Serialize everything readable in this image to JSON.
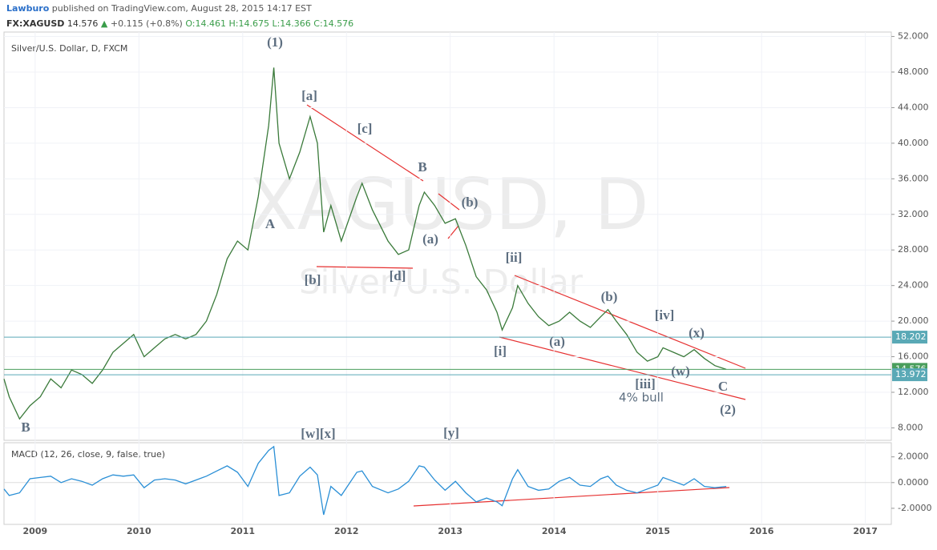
{
  "header": {
    "author": "Lawburo",
    "published": "published on TradingView.com, August 28, 2015 14:17 EST",
    "symbol": "FX:XAGUSD",
    "last": "14.576",
    "change": "+0.115 (+0.8%)",
    "ohlc": [
      "O:14.461",
      "H:14.675",
      "L:14.366",
      "C:14.576"
    ]
  },
  "chart_data": [
    {
      "type": "line",
      "title": "Silver/U.S. Dollar, D, FXCM",
      "watermark": [
        "XAGUSD, D",
        "Silver/U.S. Dollar"
      ],
      "color": "#3a7a3a",
      "grid": true,
      "x": [
        2008.7,
        2008.75,
        2008.85,
        2008.95,
        2009.05,
        2009.15,
        2009.25,
        2009.35,
        2009.45,
        2009.55,
        2009.65,
        2009.75,
        2009.85,
        2009.95,
        2010.05,
        2010.15,
        2010.25,
        2010.35,
        2010.45,
        2010.55,
        2010.65,
        2010.75,
        2010.85,
        2010.95,
        2011.05,
        2011.15,
        2011.25,
        2011.3,
        2011.35,
        2011.45,
        2011.55,
        2011.65,
        2011.72,
        2011.78,
        2011.85,
        2011.95,
        2012.1,
        2012.15,
        2012.25,
        2012.4,
        2012.5,
        2012.6,
        2012.7,
        2012.75,
        2012.85,
        2012.95,
        2013.05,
        2013.15,
        2013.25,
        2013.35,
        2013.45,
        2013.5,
        2013.6,
        2013.65,
        2013.75,
        2013.85,
        2013.95,
        2014.05,
        2014.15,
        2014.25,
        2014.35,
        2014.45,
        2014.52,
        2014.6,
        2014.7,
        2014.8,
        2014.9,
        2015.0,
        2015.05,
        2015.15,
        2015.25,
        2015.35,
        2015.45,
        2015.55,
        2015.66
      ],
      "values": [
        13.5,
        11.5,
        9.0,
        10.5,
        11.5,
        13.5,
        12.5,
        14.5,
        14.0,
        13.0,
        14.5,
        16.5,
        17.5,
        18.5,
        16.0,
        17.0,
        18.0,
        18.5,
        18.0,
        18.5,
        20.0,
        23.0,
        27.0,
        29.0,
        28.0,
        34.0,
        42.0,
        48.5,
        40.0,
        36.0,
        39.0,
        43.0,
        40.0,
        30.0,
        33.0,
        29.0,
        34.0,
        35.5,
        32.5,
        29.0,
        27.5,
        28.0,
        33.0,
        34.5,
        33.0,
        31.0,
        31.5,
        28.5,
        25.0,
        23.5,
        21.0,
        19.0,
        21.5,
        24.0,
        22.0,
        20.5,
        19.5,
        20.0,
        21.0,
        20.0,
        19.3,
        20.5,
        21.3,
        20.0,
        18.5,
        16.5,
        15.5,
        16.0,
        17.0,
        16.5,
        16.0,
        16.8,
        15.8,
        15.0,
        14.576
      ],
      "xlim": [
        2008.7,
        2017.25
      ],
      "xticks": [
        2009,
        2010,
        2011,
        2012,
        2013,
        2014,
        2015,
        2016,
        2017
      ],
      "ylim": [
        6.6,
        52.5
      ],
      "yticks": [
        {
          "value": 8,
          "label": "8.000"
        },
        {
          "value": 12,
          "label": "12.000"
        },
        {
          "value": 16,
          "label": "16.000"
        },
        {
          "value": 20,
          "label": "20.000"
        },
        {
          "value": 24,
          "label": "24.000"
        },
        {
          "value": 28,
          "label": "28.000"
        },
        {
          "value": 32,
          "label": "32.000"
        },
        {
          "value": 36,
          "label": "36.000"
        },
        {
          "value": 40,
          "label": "40.000"
        },
        {
          "value": 44,
          "label": "44.000"
        },
        {
          "value": 48,
          "label": "48.000"
        },
        {
          "value": 52,
          "label": "52.000"
        }
      ],
      "price_lines": [
        {
          "value": 18.202,
          "color": "#5aa9b6"
        },
        {
          "value": 14.576,
          "color": "#4a9e5c"
        },
        {
          "value": 13.972,
          "color": "#5aa9b6"
        }
      ],
      "annotations": [
        "(1)",
        "[a]",
        "[c]",
        "B",
        "(b)",
        "A",
        "(a)",
        "[ii]",
        "[b]",
        "[d]",
        "(b)",
        "[iv]",
        "(x)",
        "[i]",
        "(a)",
        "(w)",
        "[iii]",
        "C",
        "4% bull",
        "(2)",
        "B",
        "[w][x]",
        "[y]"
      ]
    },
    {
      "type": "line",
      "title": "MACD (12, 26, close, 9, false, true)",
      "color": "#2a8fd6",
      "x": [
        2008.7,
        2008.75,
        2008.85,
        2008.95,
        2009.05,
        2009.15,
        2009.25,
        2009.35,
        2009.45,
        2009.55,
        2009.65,
        2009.75,
        2009.85,
        2009.95,
        2010.05,
        2010.15,
        2010.25,
        2010.35,
        2010.45,
        2010.55,
        2010.65,
        2010.75,
        2010.85,
        2010.95,
        2011.05,
        2011.15,
        2011.25,
        2011.3,
        2011.35,
        2011.45,
        2011.55,
        2011.65,
        2011.72,
        2011.78,
        2011.85,
        2011.95,
        2012.1,
        2012.15,
        2012.25,
        2012.4,
        2012.5,
        2012.6,
        2012.7,
        2012.75,
        2012.85,
        2012.95,
        2013.05,
        2013.15,
        2013.25,
        2013.35,
        2013.45,
        2013.5,
        2013.6,
        2013.65,
        2013.75,
        2013.85,
        2013.95,
        2014.05,
        2014.15,
        2014.25,
        2014.35,
        2014.45,
        2014.52,
        2014.6,
        2014.7,
        2014.8,
        2014.9,
        2015.0,
        2015.05,
        2015.15,
        2015.25,
        2015.35,
        2015.45,
        2015.55,
        2015.66
      ],
      "values": [
        -0.5,
        -1,
        -0.8,
        0.3,
        0.4,
        0.5,
        0,
        0.3,
        0.1,
        -0.2,
        0.3,
        0.6,
        0.5,
        0.6,
        -0.4,
        0.2,
        0.3,
        0.2,
        -0.1,
        0.2,
        0.5,
        0.9,
        1.3,
        0.8,
        -0.3,
        1.5,
        2.5,
        2.8,
        -1.0,
        -0.8,
        0.5,
        1.2,
        0.6,
        -2.5,
        -0.3,
        -1.0,
        0.8,
        0.9,
        -0.3,
        -0.8,
        -0.5,
        0.1,
        1.3,
        1.2,
        0.2,
        -0.6,
        0.1,
        -0.8,
        -1.5,
        -1.2,
        -1.5,
        -1.8,
        0.3,
        1.0,
        -0.3,
        -0.6,
        -0.5,
        0.1,
        0.4,
        -0.2,
        -0.3,
        0.3,
        0.5,
        -0.2,
        -0.6,
        -0.8,
        -0.5,
        -0.2,
        0.4,
        0.1,
        -0.2,
        0.3,
        -0.3,
        -0.4,
        -0.3
      ],
      "xlim": [
        2008.7,
        2017.25
      ],
      "ylim": [
        -3.25,
        3.1
      ],
      "yticks": [
        {
          "value": -2,
          "label": "-2.0000"
        },
        {
          "value": 0,
          "label": "0.0000"
        },
        {
          "value": 2,
          "label": "2.0000"
        }
      ]
    }
  ]
}
